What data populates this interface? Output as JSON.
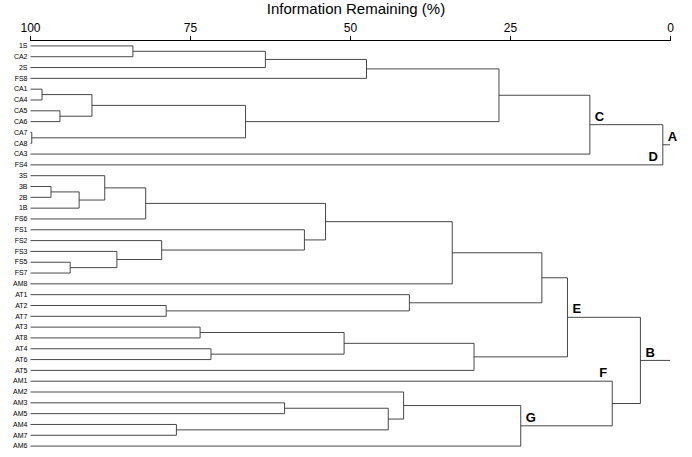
{
  "chart_data": {
    "type": "dendrogram",
    "title": "Information Remaining (%)",
    "xlim": [
      100,
      0
    ],
    "xticks": [
      100,
      75,
      50,
      25,
      0
    ],
    "tree": {
      "height": 0,
      "children": [
        {
          "height": 1.2,
          "label": "A",
          "children": [
            {
              "height": 12.6,
              "label": "C",
              "children": [
                {
                  "height": 26.8,
                  "children": [
                    {
                      "height": 47.5,
                      "children": [
                        {
                          "height": 63.3,
                          "children": [
                            {
                              "height": 84.0,
                              "children": [
                                {
                                  "name": "1S"
                                },
                                {
                                  "name": "CA2"
                                }
                              ]
                            },
                            {
                              "name": "2S"
                            }
                          ]
                        },
                        {
                          "name": "FS8"
                        }
                      ]
                    },
                    {
                      "height": 66.4,
                      "children": [
                        {
                          "height": 90.4,
                          "children": [
                            {
                              "height": 98.2,
                              "children": [
                                {
                                  "name": "CA1"
                                },
                                {
                                  "name": "CA4"
                                }
                              ]
                            },
                            {
                              "height": 95.4,
                              "children": [
                                {
                                  "name": "CA5"
                                },
                                {
                                  "name": "CA6"
                                }
                              ]
                            }
                          ]
                        },
                        {
                          "height": 99.8,
                          "children": [
                            {
                              "name": "CA7"
                            },
                            {
                              "name": "CA8"
                            }
                          ]
                        }
                      ]
                    }
                  ]
                },
                {
                  "name": "CA3"
                }
              ]
            },
            {
              "name": "FS4",
              "label": "D"
            }
          ]
        },
        {
          "height": 4.7,
          "label": "B",
          "children": [
            {
              "height": 16.1,
              "label": "E",
              "children": [
                {
                  "height": 20.1,
                  "children": [
                    {
                      "height": 34.1,
                      "children": [
                        {
                          "height": 53.9,
                          "children": [
                            {
                              "height": 82.0,
                              "children": [
                                {
                                  "height": 88.4,
                                  "children": [
                                    {
                                      "name": "3S"
                                    },
                                    {
                                      "height": 92.4,
                                      "children": [
                                        {
                                          "height": 96.8,
                                          "children": [
                                            {
                                              "name": "3B"
                                            },
                                            {
                                              "name": "2B"
                                            }
                                          ]
                                        },
                                        {
                                          "name": "1B"
                                        }
                                      ]
                                    }
                                  ]
                                },
                                {
                                  "name": "FS6"
                                }
                              ]
                            },
                            {
                              "height": 57.2,
                              "children": [
                                {
                                  "name": "FS1"
                                },
                                {
                                  "height": 79.5,
                                  "children": [
                                    {
                                      "name": "FS2"
                                    },
                                    {
                                      "height": 86.5,
                                      "children": [
                                        {
                                          "name": "FS3"
                                        },
                                        {
                                          "height": 93.8,
                                          "children": [
                                            {
                                              "name": "FS5"
                                            },
                                            {
                                              "name": "FS7"
                                            }
                                          ]
                                        }
                                      ]
                                    }
                                  ]
                                }
                              ]
                            }
                          ]
                        },
                        {
                          "name": "AM8"
                        }
                      ]
                    },
                    {
                      "height": 40.8,
                      "children": [
                        {
                          "name": "AT1"
                        },
                        {
                          "height": 78.8,
                          "children": [
                            {
                              "name": "AT2"
                            },
                            {
                              "name": "AT7"
                            }
                          ]
                        }
                      ]
                    }
                  ]
                },
                {
                  "height": 30.7,
                  "children": [
                    {
                      "height": 51.0,
                      "children": [
                        {
                          "height": 73.5,
                          "children": [
                            {
                              "name": "AT3"
                            },
                            {
                              "name": "AT8"
                            }
                          ]
                        },
                        {
                          "height": 71.8,
                          "children": [
                            {
                              "name": "AT4"
                            },
                            {
                              "name": "AT6"
                            }
                          ]
                        }
                      ]
                    },
                    {
                      "name": "AT5"
                    }
                  ]
                }
              ]
            },
            {
              "height": 9.1,
              "children": [
                {
                  "name": "AM1",
                  "label": "F"
                },
                {
                  "height": 23.4,
                  "label": "G",
                  "children": [
                    {
                      "height": 41.7,
                      "children": [
                        {
                          "name": "AM2"
                        },
                        {
                          "height": 44.1,
                          "children": [
                            {
                              "height": 60.3,
                              "children": [
                                {
                                  "name": "AM3"
                                },
                                {
                                  "name": "AM5"
                                }
                              ]
                            },
                            {
                              "height": 77.2,
                              "children": [
                                {
                                  "name": "AM4"
                                },
                                {
                                  "name": "AM7"
                                }
                              ]
                            }
                          ]
                        }
                      ]
                    },
                    {
                      "name": "AM6"
                    }
                  ]
                }
              ]
            }
          ]
        }
      ]
    }
  }
}
